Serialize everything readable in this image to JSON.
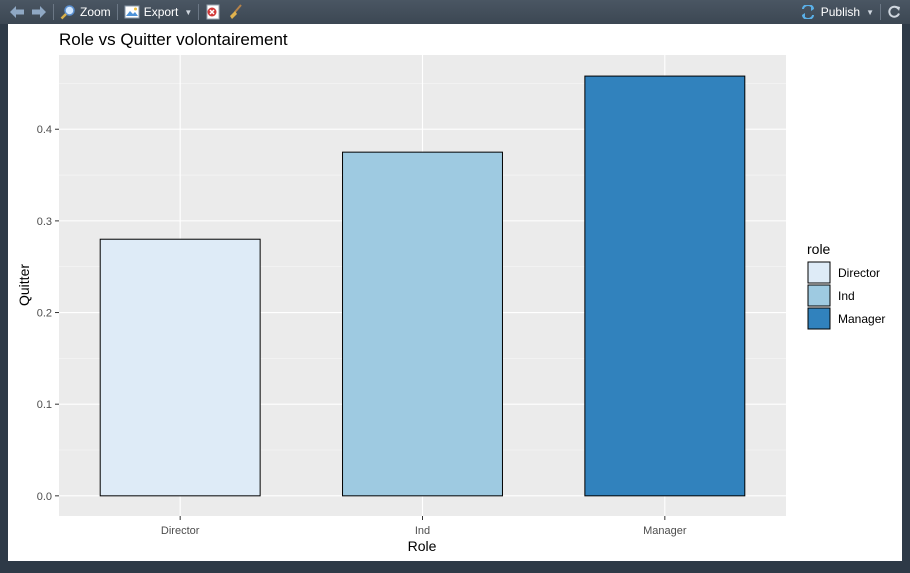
{
  "toolbar": {
    "zoom_label": "Zoom",
    "export_label": "Export",
    "publish_label": "Publish",
    "icons": {
      "back": "arrow-left-icon",
      "forward": "arrow-right-icon",
      "zoom": "magnifier-icon",
      "export": "image-export-icon",
      "remove": "remove-plot-icon",
      "clear": "broom-icon",
      "publish": "publish-icon",
      "refresh": "refresh-icon"
    }
  },
  "chart_data": {
    "type": "bar",
    "title": "Role vs Quitter volontairement",
    "xlabel": "Role",
    "ylabel": "Quitter",
    "categories": [
      "Director",
      "Ind",
      "Manager"
    ],
    "values": [
      0.28,
      0.375,
      0.458
    ],
    "ylim": [
      -0.022,
      0.481
    ],
    "yticks": [
      0.0,
      0.1,
      0.2,
      0.3,
      0.4
    ],
    "ytick_labels": [
      "0.0",
      "0.1",
      "0.2",
      "0.3",
      "0.4"
    ],
    "grid": true,
    "colors": [
      "#deebf7",
      "#9ecae1",
      "#3182bd"
    ],
    "panel_background": "#ebebeb",
    "legend": {
      "title": "role",
      "position": "right",
      "entries": [
        "Director",
        "Ind",
        "Manager"
      ]
    }
  }
}
